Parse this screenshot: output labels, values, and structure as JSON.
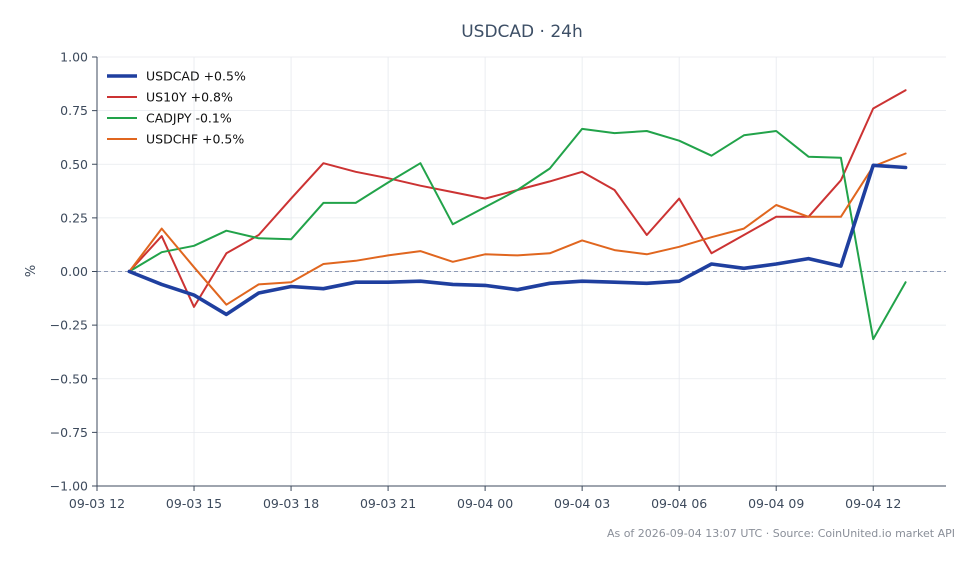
{
  "chart_data": {
    "type": "line",
    "title": "USDCAD · 24h",
    "xlabel": "",
    "ylabel": "%",
    "ylim": [
      -1.0,
      1.0
    ],
    "yticks": [
      1.0,
      0.75,
      0.5,
      0.25,
      0.0,
      -0.25,
      -0.5,
      -0.75,
      -1.0
    ],
    "ytick_labels": [
      "1.00",
      "0.75",
      "0.50",
      "0.25",
      "0.00",
      "−0.25",
      "−0.50",
      "−0.75",
      "−1.00"
    ],
    "xlim": [
      "2026-09-03 12:00",
      "2026-09-04 14:15"
    ],
    "xticks": [
      "2026-09-03 12:00",
      "2026-09-03 15:00",
      "2026-09-03 18:00",
      "2026-09-03 21:00",
      "2026-09-04 00:00",
      "2026-09-04 03:00",
      "2026-09-04 06:00",
      "2026-09-04 09:00",
      "2026-09-04 12:00"
    ],
    "xtick_labels": [
      "09-03 12",
      "09-03 15",
      "09-03 18",
      "09-03 21",
      "09-04 00",
      "09-04 03",
      "09-04 06",
      "09-04 09",
      "09-04 12"
    ],
    "x": [
      "2026-09-03 13:00",
      "2026-09-03 14:00",
      "2026-09-03 15:00",
      "2026-09-03 16:00",
      "2026-09-03 17:00",
      "2026-09-03 18:00",
      "2026-09-03 19:00",
      "2026-09-03 20:00",
      "2026-09-03 21:00",
      "2026-09-03 22:00",
      "2026-09-03 23:00",
      "2026-09-04 00:00",
      "2026-09-04 01:00",
      "2026-09-04 02:00",
      "2026-09-04 03:00",
      "2026-09-04 04:00",
      "2026-09-04 05:00",
      "2026-09-04 06:00",
      "2026-09-04 07:00",
      "2026-09-04 08:00",
      "2026-09-04 09:00",
      "2026-09-04 10:00",
      "2026-09-04 11:00",
      "2026-09-04 12:00",
      "2026-09-04 13:00"
    ],
    "grid": true,
    "zero_line": true,
    "legend_position": "top-left",
    "series": [
      {
        "name": "USDCAD +0.5%",
        "color": "#1f3f9f",
        "emphasis": true,
        "values": [
          0.0,
          -0.06,
          -0.11,
          -0.2,
          -0.1,
          -0.07,
          -0.08,
          -0.05,
          -0.05,
          -0.045,
          -0.06,
          -0.065,
          -0.085,
          -0.055,
          -0.045,
          -0.05,
          -0.055,
          -0.045,
          0.035,
          0.015,
          0.035,
          0.06,
          0.025,
          0.495,
          0.485
        ]
      },
      {
        "name": "US10Y +0.8%",
        "color": "#cc3333",
        "values": [
          0.0,
          0.165,
          -0.165,
          0.085,
          0.17,
          0.34,
          0.505,
          0.465,
          0.435,
          0.4,
          0.37,
          0.34,
          0.38,
          0.42,
          0.465,
          0.38,
          0.17,
          0.34,
          0.085,
          0.17,
          0.255,
          0.255,
          0.425,
          0.76,
          0.845
        ]
      },
      {
        "name": "CADJPY -0.1%",
        "color": "#22a34a",
        "values": [
          0.0,
          0.09,
          0.12,
          0.19,
          0.155,
          0.15,
          0.32,
          0.32,
          0.415,
          0.505,
          0.22,
          0.3,
          0.38,
          0.48,
          0.665,
          0.645,
          0.655,
          0.61,
          0.54,
          0.635,
          0.655,
          0.535,
          0.53,
          -0.315,
          -0.05
        ]
      },
      {
        "name": "USDCHF +0.5%",
        "color": "#e0661f",
        "values": [
          0.0,
          0.2,
          0.02,
          -0.155,
          -0.06,
          -0.05,
          0.035,
          0.05,
          0.075,
          0.095,
          0.045,
          0.08,
          0.075,
          0.085,
          0.145,
          0.1,
          0.08,
          0.115,
          0.16,
          0.2,
          0.31,
          0.255,
          0.255,
          0.49,
          0.55
        ]
      }
    ]
  },
  "footer": "As of 2026-09-04 13:07 UTC · Source: CoinUnited.io market API"
}
